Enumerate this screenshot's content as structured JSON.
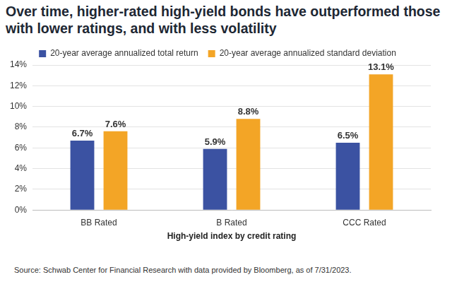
{
  "chart_data": {
    "type": "bar",
    "title": "Over time, higher-rated high-yield bonds have outperformed those with lower ratings, and with less volatility",
    "x_label": "High-yield index by credit rating",
    "source": "Source: Schwab Center for Financial Research with data provided by Bloomberg, as of 7/31/2023.",
    "categories": [
      "BB Rated",
      "B Rated",
      "CCC Rated"
    ],
    "series": [
      {
        "name": "20-year average annualized total return",
        "color": "#3b52a2",
        "values": [
          6.7,
          5.9,
          6.5
        ],
        "value_labels": [
          "6.7%",
          "5.9%",
          "6.5%"
        ]
      },
      {
        "name": "20-year average annualized standard deviation",
        "color": "#f3a526",
        "values": [
          7.6,
          8.8,
          13.1
        ],
        "value_labels": [
          "7.6%",
          "8.8%",
          "13.1%"
        ]
      }
    ],
    "ylim": [
      0,
      14
    ],
    "yticks": [
      {
        "value": 0,
        "label": "0%"
      },
      {
        "value": 2,
        "label": "2%"
      },
      {
        "value": 4,
        "label": "4%"
      },
      {
        "value": 6,
        "label": "6%"
      },
      {
        "value": 8,
        "label": "8%"
      },
      {
        "value": 10,
        "label": "10%"
      },
      {
        "value": 12,
        "label": "12%"
      },
      {
        "value": 14,
        "label": "14%"
      }
    ],
    "grid": true,
    "legend": "top",
    "data_labels": true
  }
}
